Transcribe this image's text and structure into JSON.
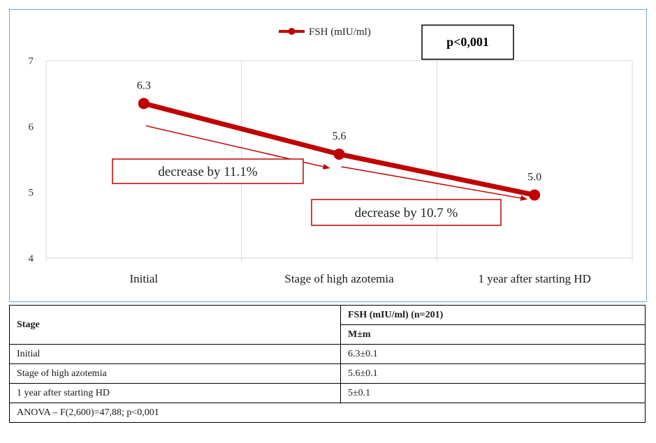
{
  "chart_data": {
    "type": "line",
    "categories": [
      "Initial",
      "Stage of high azotemia",
      "1 year after starting HD"
    ],
    "series": [
      {
        "name": "FSH (mIU/ml)",
        "values": [
          6.35,
          5.58,
          4.96
        ],
        "labels": [
          "6.3",
          "5.6",
          "5.0"
        ]
      }
    ],
    "ylim": [
      4,
      7
    ],
    "yticks": [
      4,
      5,
      6,
      7
    ],
    "grid": true,
    "legend": "top-center",
    "annotations": {
      "pvalue": "p<0,001",
      "decrease1": "decrease by 11.1%",
      "decrease2": "decrease by 10.7 %"
    },
    "colors": {
      "series": "#c00000",
      "grid": "#d9d9d9",
      "frame": "#6fa8dc"
    }
  },
  "table": {
    "stage_header": "Stage",
    "fsh_header": "FSH (mIU/ml) (n=201)",
    "stat_header": "M±m",
    "rows": [
      {
        "stage": "Initial",
        "value": "6.3±0.1"
      },
      {
        "stage": "Stage of high azotemia",
        "value": "5.6±0.1"
      },
      {
        "stage": "1 year after starting HD",
        "value": "5±0.1"
      }
    ],
    "footer": "ANOVA – F(2,600)=47,88; p<0,001"
  }
}
